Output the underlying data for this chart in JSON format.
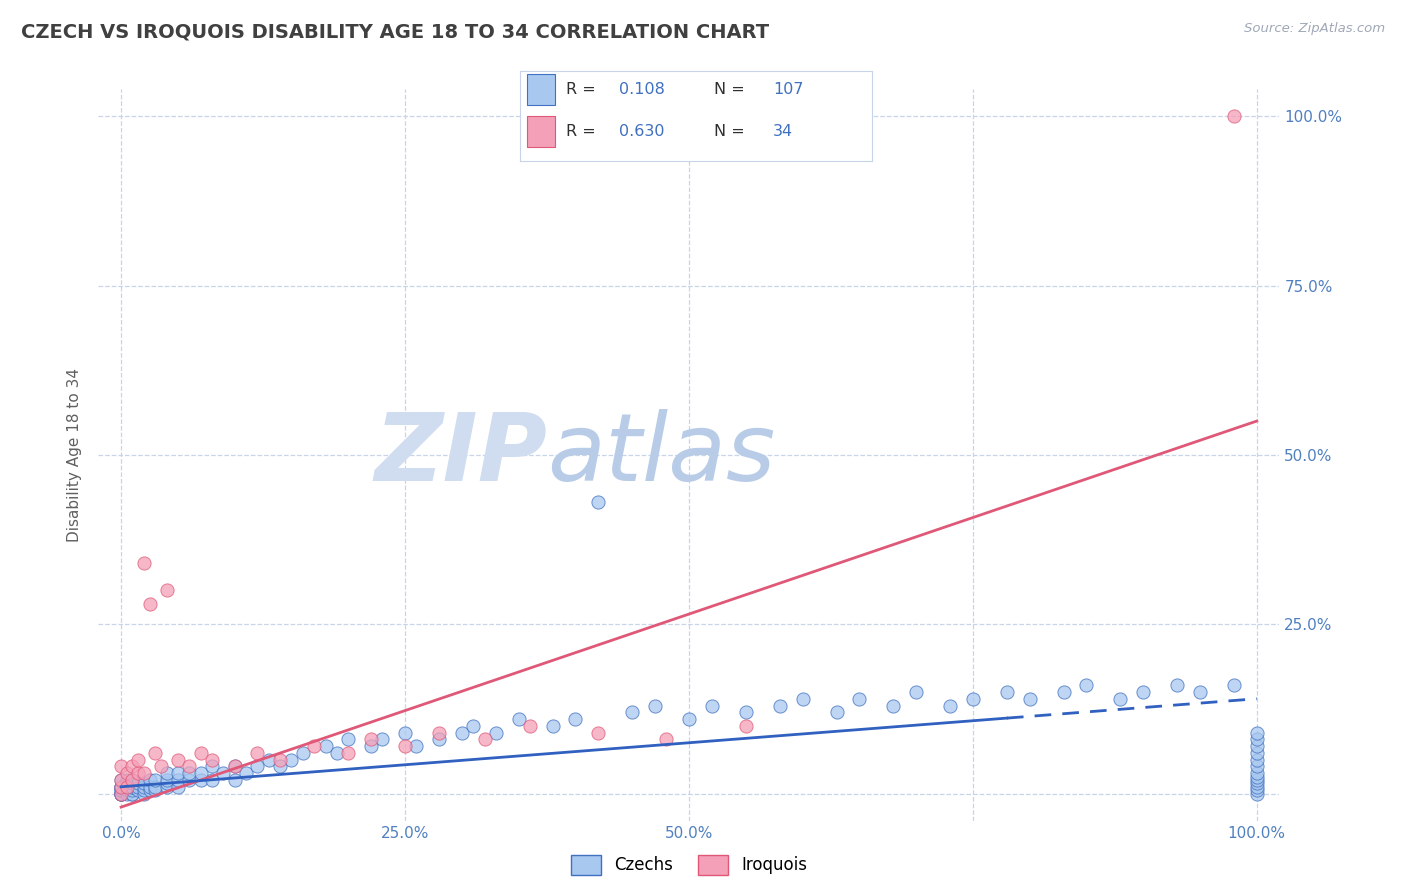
{
  "title": "CZECH VS IROQUOIS DISABILITY AGE 18 TO 34 CORRELATION CHART",
  "source_text": "Source: ZipAtlas.com",
  "ylabel": "Disability Age 18 to 34",
  "xlim": [
    -0.02,
    1.02
  ],
  "ylim": [
    -0.04,
    1.04
  ],
  "czech_R": 0.108,
  "czech_N": 107,
  "iroquois_R": 0.63,
  "iroquois_N": 34,
  "czech_color": "#a8c8f0",
  "iroquois_color": "#f4a0b8",
  "czech_edge_color": "#4070c0",
  "iroquois_edge_color": "#e05878",
  "czech_line_color": "#3060c0",
  "iroquois_line_color": "#e05878",
  "watermark_zip": "ZIP",
  "watermark_atlas": "atlas",
  "watermark_color_zip": "#d0ddf0",
  "watermark_color_atlas": "#b8cce8",
  "background_color": "#ffffff",
  "grid_color": "#c8d4e8",
  "title_color": "#404040",
  "tick_color": "#5080c0",
  "source_color": "#a0a8b8",
  "legend_text_color": "#303030",
  "legend_val_color": "#4070c0",
  "czech_line_solid_end": 0.78,
  "czech_line_slope": 0.13,
  "czech_line_intercept": 0.01,
  "iroquois_line_slope": 0.57,
  "iroquois_line_intercept": -0.02,
  "czech_scatter_x": [
    0.0,
    0.0,
    0.0,
    0.0,
    0.0,
    0.0,
    0.0,
    0.0,
    0.0,
    0.0,
    0.005,
    0.005,
    0.005,
    0.005,
    0.005,
    0.01,
    0.01,
    0.01,
    0.01,
    0.01,
    0.01,
    0.01,
    0.015,
    0.015,
    0.015,
    0.02,
    0.02,
    0.02,
    0.02,
    0.025,
    0.025,
    0.025,
    0.03,
    0.03,
    0.03,
    0.04,
    0.04,
    0.04,
    0.04,
    0.05,
    0.05,
    0.05,
    0.06,
    0.06,
    0.07,
    0.07,
    0.08,
    0.08,
    0.09,
    0.1,
    0.1,
    0.11,
    0.12,
    0.13,
    0.14,
    0.15,
    0.16,
    0.18,
    0.19,
    0.2,
    0.22,
    0.23,
    0.25,
    0.26,
    0.28,
    0.3,
    0.31,
    0.33,
    0.35,
    0.38,
    0.4,
    0.42,
    0.45,
    0.47,
    0.5,
    0.52,
    0.55,
    0.58,
    0.6,
    0.63,
    0.65,
    0.68,
    0.7,
    0.73,
    0.75,
    0.78,
    0.8,
    0.83,
    0.85,
    0.88,
    0.9,
    0.93,
    0.95,
    0.98,
    1.0,
    1.0,
    1.0,
    1.0,
    1.0,
    1.0,
    1.0,
    1.0,
    1.0,
    1.0,
    1.0,
    1.0,
    1.0
  ],
  "czech_scatter_y": [
    0.0,
    0.0,
    0.0,
    0.0,
    0.005,
    0.005,
    0.01,
    0.01,
    0.01,
    0.02,
    0.0,
    0.005,
    0.01,
    0.015,
    0.02,
    0.0,
    0.0,
    0.005,
    0.01,
    0.01,
    0.015,
    0.02,
    0.005,
    0.01,
    0.015,
    0.0,
    0.005,
    0.01,
    0.015,
    0.005,
    0.01,
    0.02,
    0.005,
    0.01,
    0.02,
    0.01,
    0.015,
    0.02,
    0.03,
    0.01,
    0.02,
    0.03,
    0.02,
    0.03,
    0.02,
    0.03,
    0.02,
    0.04,
    0.03,
    0.02,
    0.04,
    0.03,
    0.04,
    0.05,
    0.04,
    0.05,
    0.06,
    0.07,
    0.06,
    0.08,
    0.07,
    0.08,
    0.09,
    0.07,
    0.08,
    0.09,
    0.1,
    0.09,
    0.11,
    0.1,
    0.11,
    0.43,
    0.12,
    0.13,
    0.11,
    0.13,
    0.12,
    0.13,
    0.14,
    0.12,
    0.14,
    0.13,
    0.15,
    0.13,
    0.14,
    0.15,
    0.14,
    0.15,
    0.16,
    0.14,
    0.15,
    0.16,
    0.15,
    0.16,
    0.0,
    0.005,
    0.01,
    0.015,
    0.02,
    0.025,
    0.03,
    0.04,
    0.05,
    0.06,
    0.07,
    0.08,
    0.09
  ],
  "iroquois_scatter_x": [
    0.0,
    0.0,
    0.0,
    0.0,
    0.005,
    0.005,
    0.01,
    0.01,
    0.015,
    0.015,
    0.02,
    0.02,
    0.025,
    0.03,
    0.035,
    0.04,
    0.05,
    0.06,
    0.07,
    0.08,
    0.1,
    0.12,
    0.14,
    0.17,
    0.2,
    0.22,
    0.25,
    0.28,
    0.32,
    0.36,
    0.42,
    0.48,
    0.55,
    0.98
  ],
  "iroquois_scatter_y": [
    0.0,
    0.01,
    0.02,
    0.04,
    0.01,
    0.03,
    0.02,
    0.04,
    0.03,
    0.05,
    0.34,
    0.03,
    0.28,
    0.06,
    0.04,
    0.3,
    0.05,
    0.04,
    0.06,
    0.05,
    0.04,
    0.06,
    0.05,
    0.07,
    0.06,
    0.08,
    0.07,
    0.09,
    0.08,
    0.1,
    0.09,
    0.08,
    0.1,
    1.0
  ]
}
